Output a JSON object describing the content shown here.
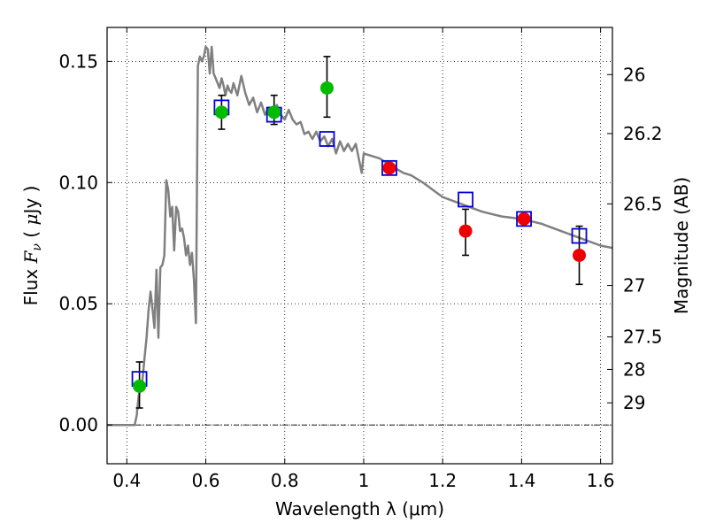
{
  "chart_data": {
    "type": "scatter",
    "xlabel": "Wavelength  λ (μm)",
    "ylabel": "Flux  F_ν  ( μJy )",
    "ylabel_parts": {
      "pre": "Flux  ",
      "sym": "F",
      "sub": "ν",
      "post1": "  ( ",
      "mu": "μ",
      "post2": "Jy )"
    },
    "y2label": "Magnitude (AB)",
    "xlim": [
      0.35,
      1.63
    ],
    "ylim": [
      -0.016,
      0.164
    ],
    "grid": true,
    "x_ticks": [
      {
        "v": 0.4,
        "label": "0.4"
      },
      {
        "v": 0.6,
        "label": "0.6"
      },
      {
        "v": 0.8,
        "label": "0.8"
      },
      {
        "v": 1.0,
        "label": "1"
      },
      {
        "v": 1.2,
        "label": "1.2"
      },
      {
        "v": 1.4,
        "label": "1.4"
      },
      {
        "v": 1.6,
        "label": "1.6"
      }
    ],
    "y_ticks": [
      {
        "v": 0.0,
        "label": "0.00"
      },
      {
        "v": 0.05,
        "label": "0.05"
      },
      {
        "v": 0.1,
        "label": "0.10"
      },
      {
        "v": 0.15,
        "label": "0.15"
      }
    ],
    "mag_ticks": [
      {
        "mag": 26,
        "label": "26"
      },
      {
        "mag": 26.2,
        "label": "26.2"
      },
      {
        "mag": 26.5,
        "label": "26.5"
      },
      {
        "mag": 27,
        "label": "27"
      },
      {
        "mag": 27.5,
        "label": "27.5"
      },
      {
        "mag": 28,
        "label": "28"
      },
      {
        "mag": 29,
        "label": "29"
      }
    ],
    "colors": {
      "model": "#808080",
      "detection": "#00bb00",
      "upper": "#ee0000",
      "model_box": "#0000dd",
      "errorbar": "#000000",
      "zero_line": "#000000"
    },
    "model_spectrum": {
      "x": [
        0.35,
        0.41,
        0.42,
        0.425,
        0.43,
        0.435,
        0.44,
        0.445,
        0.45,
        0.455,
        0.46,
        0.465,
        0.47,
        0.475,
        0.48,
        0.485,
        0.49,
        0.495,
        0.5,
        0.505,
        0.51,
        0.515,
        0.52,
        0.525,
        0.53,
        0.535,
        0.54,
        0.545,
        0.55,
        0.555,
        0.56,
        0.565,
        0.57,
        0.575,
        0.58,
        0.585,
        0.59,
        0.595,
        0.6,
        0.605,
        0.61,
        0.615,
        0.62,
        0.625,
        0.63,
        0.635,
        0.64,
        0.645,
        0.65,
        0.655,
        0.66,
        0.665,
        0.67,
        0.68,
        0.69,
        0.7,
        0.71,
        0.72,
        0.73,
        0.74,
        0.75,
        0.76,
        0.77,
        0.78,
        0.79,
        0.8,
        0.81,
        0.82,
        0.83,
        0.84,
        0.85,
        0.86,
        0.87,
        0.88,
        0.89,
        0.9,
        0.91,
        0.92,
        0.93,
        0.94,
        0.95,
        0.96,
        0.97,
        0.98,
        0.99,
        0.995,
        1.0,
        1.02,
        1.04,
        1.06,
        1.08,
        1.1,
        1.12,
        1.15,
        1.2,
        1.25,
        1.3,
        1.35,
        1.4,
        1.45,
        1.5,
        1.55,
        1.6,
        1.63
      ],
      "y": [
        0.0,
        0.0,
        0.0,
        0.004,
        0.012,
        0.015,
        0.019,
        0.028,
        0.036,
        0.047,
        0.055,
        0.048,
        0.04,
        0.064,
        0.036,
        0.065,
        0.066,
        0.07,
        0.101,
        0.097,
        0.086,
        0.09,
        0.072,
        0.09,
        0.088,
        0.08,
        0.081,
        0.077,
        0.07,
        0.074,
        0.066,
        0.071,
        0.06,
        0.042,
        0.148,
        0.152,
        0.15,
        0.152,
        0.156,
        0.155,
        0.145,
        0.156,
        0.145,
        0.143,
        0.141,
        0.139,
        0.143,
        0.14,
        0.136,
        0.14,
        0.138,
        0.137,
        0.141,
        0.136,
        0.144,
        0.137,
        0.132,
        0.135,
        0.129,
        0.133,
        0.128,
        0.131,
        0.13,
        0.132,
        0.128,
        0.126,
        0.13,
        0.126,
        0.124,
        0.125,
        0.12,
        0.121,
        0.118,
        0.121,
        0.117,
        0.119,
        0.115,
        0.118,
        0.112,
        0.117,
        0.113,
        0.116,
        0.113,
        0.116,
        0.108,
        0.104,
        0.112,
        0.111,
        0.11,
        0.108,
        0.106,
        0.104,
        0.103,
        0.1,
        0.094,
        0.091,
        0.088,
        0.086,
        0.085,
        0.083,
        0.08,
        0.077,
        0.074,
        0.073
      ]
    },
    "model_bands": [
      {
        "x": 0.432,
        "y": 0.019
      },
      {
        "x": 0.64,
        "y": 0.131
      },
      {
        "x": 0.773,
        "y": 0.128
      },
      {
        "x": 0.907,
        "y": 0.118
      },
      {
        "x": 1.065,
        "y": 0.106
      },
      {
        "x": 1.258,
        "y": 0.093
      },
      {
        "x": 1.406,
        "y": 0.085
      },
      {
        "x": 1.546,
        "y": 0.078
      }
    ],
    "detections": [
      {
        "x": 0.432,
        "y": 0.016,
        "yerr_low": 0.007,
        "yerr_high": 0.026
      },
      {
        "x": 0.64,
        "y": 0.129,
        "yerr_low": 0.122,
        "yerr_high": 0.136
      },
      {
        "x": 0.773,
        "y": 0.129,
        "yerr_low": 0.124,
        "yerr_high": 0.136
      },
      {
        "x": 0.907,
        "y": 0.139,
        "yerr_low": 0.127,
        "yerr_high": 0.152
      }
    ],
    "upper_limits": [
      {
        "x": 1.065,
        "y": 0.106
      },
      {
        "x": 1.258,
        "y": 0.08,
        "yerr_low": 0.07,
        "yerr_high": 0.089
      },
      {
        "x": 1.406,
        "y": 0.085
      },
      {
        "x": 1.546,
        "y": 0.07,
        "yerr_low": 0.058,
        "yerr_high": 0.082
      }
    ]
  }
}
